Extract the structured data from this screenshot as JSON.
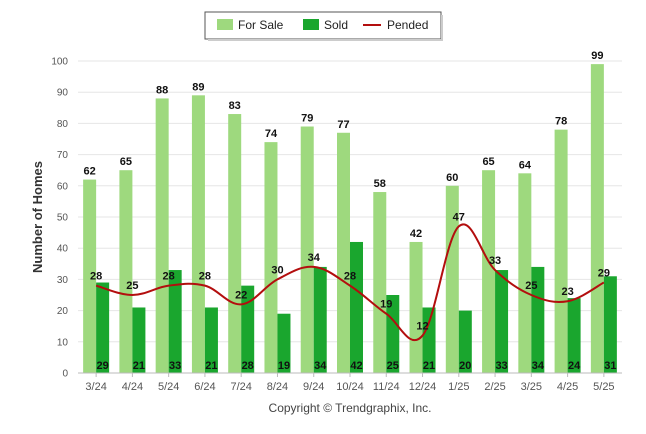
{
  "chart_data": {
    "type": "bar",
    "categories": [
      "3/24",
      "4/24",
      "5/24",
      "6/24",
      "7/24",
      "8/24",
      "9/24",
      "10/24",
      "11/24",
      "12/24",
      "1/25",
      "2/25",
      "3/25",
      "4/25",
      "5/25"
    ],
    "series": [
      {
        "name": "For Sale",
        "type": "bar",
        "color": "#9ed97e",
        "values": [
          62,
          65,
          88,
          89,
          83,
          74,
          79,
          77,
          58,
          42,
          60,
          65,
          64,
          78,
          99
        ]
      },
      {
        "name": "Sold",
        "type": "bar",
        "color": "#1aa62e",
        "values": [
          29,
          21,
          33,
          21,
          28,
          19,
          34,
          42,
          25,
          21,
          20,
          33,
          34,
          24,
          31
        ]
      },
      {
        "name": "Pended",
        "type": "line",
        "color": "#b30e0e",
        "values": [
          28,
          25,
          28,
          28,
          22,
          30,
          34,
          28,
          19,
          12,
          47,
          33,
          25,
          23,
          29
        ]
      }
    ],
    "ylabel": "Number of Homes",
    "xlabel": "",
    "ylim": [
      0,
      100
    ],
    "yticks": [
      0,
      10,
      20,
      30,
      40,
      50,
      60,
      70,
      80,
      90,
      100
    ],
    "grid": true,
    "legend_position": "top-center"
  },
  "footer": {
    "copyright": "Copyright © Trendgraphix, Inc."
  }
}
